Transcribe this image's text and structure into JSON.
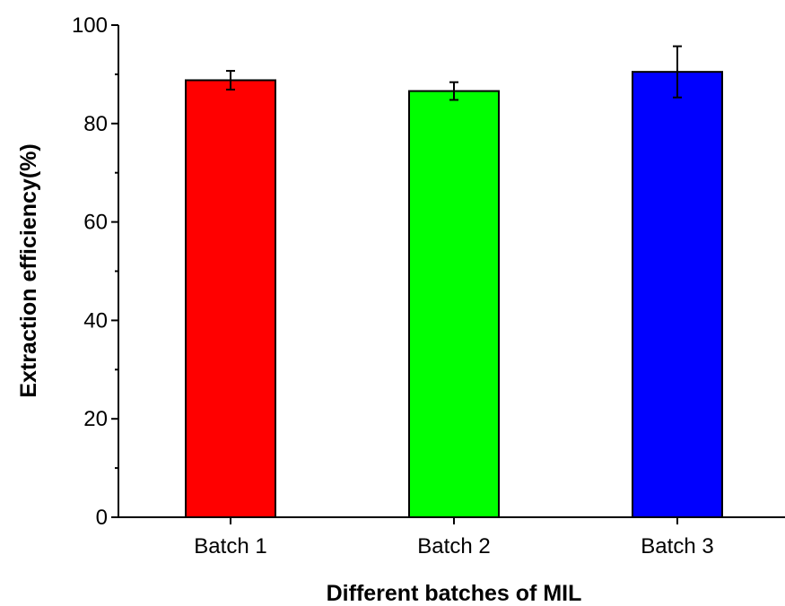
{
  "chart_data": {
    "type": "bar",
    "title": "",
    "xlabel": "Different batches of MIL",
    "ylabel": "Extraction  efficiency(%)",
    "categories": [
      "Batch 1",
      "Batch 2",
      "Batch 3"
    ],
    "values": [
      88.8,
      86.6,
      90.5
    ],
    "errors": [
      1.9,
      1.8,
      5.2
    ],
    "colors": [
      "#ff0000",
      "#00ff00",
      "#0000ff"
    ],
    "ylim": [
      0,
      100
    ],
    "yticks": [
      0,
      20,
      40,
      60,
      80,
      100
    ],
    "ytick_labels": [
      "0",
      "20",
      "40",
      "60",
      "80",
      "100"
    ],
    "grid": false,
    "legend": false
  }
}
